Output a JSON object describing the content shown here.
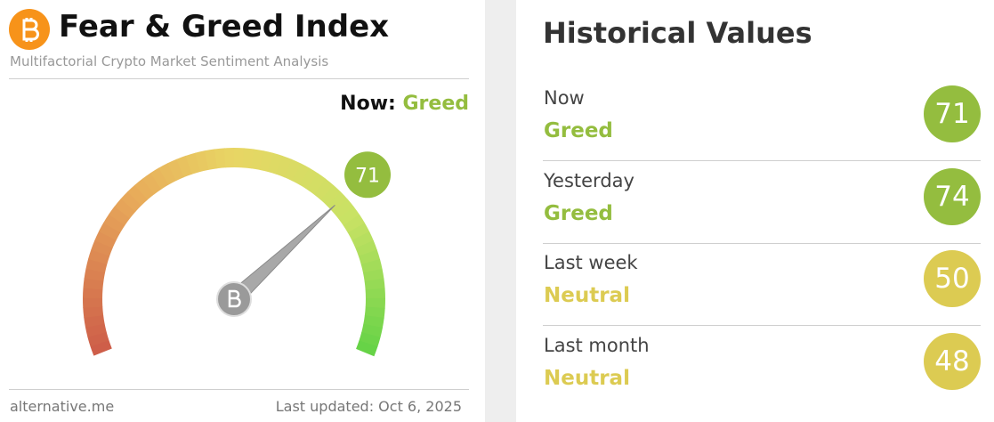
{
  "header": {
    "title": "Fear & Greed Index",
    "subtitle": "Multifactorial Crypto Market Sentiment Analysis"
  },
  "now": {
    "label": "Now:",
    "classification": "Greed",
    "color": "#94bd3f",
    "value": 71
  },
  "gauge": {
    "range": [
      0,
      100
    ]
  },
  "footer": {
    "source": "alternative.me",
    "updated": "Last updated: Oct 6, 2025"
  },
  "historical": {
    "title": "Historical Values",
    "rows": [
      {
        "period": "Now",
        "classification": "Greed",
        "color": "#94bd3f",
        "value": 71
      },
      {
        "period": "Yesterday",
        "classification": "Greed",
        "color": "#94bd3f",
        "value": 74
      },
      {
        "period": "Last week",
        "classification": "Neutral",
        "color": "#dccb52",
        "value": 50
      },
      {
        "period": "Last month",
        "classification": "Neutral",
        "color": "#dccb52",
        "value": 48
      }
    ]
  }
}
